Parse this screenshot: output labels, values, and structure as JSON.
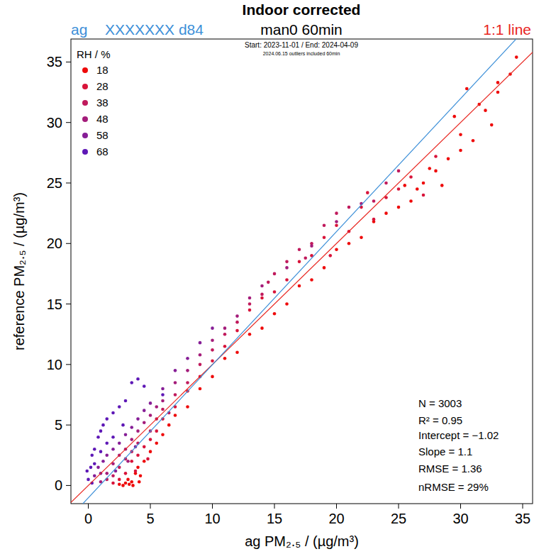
{
  "chart_data": {
    "type": "scatter",
    "title": "Indoor corrected",
    "header": {
      "left": "ag",
      "left2": "XXXXXXX d84",
      "center": "man0 60min",
      "right": "1:1 line",
      "left_color": "#3c8fd8",
      "right_color": "#e8251f"
    },
    "subtitle": "Start: 2023-11-01 / End: 2024-04-09",
    "note": "2024.06.15 outliers included 60min",
    "x_label": "ag PM₂.₅ / (µg/m³)",
    "y_label": "reference PM₂.₅ / (µg/m³)",
    "legend_title": "RH / %",
    "legend": "top-left",
    "xlim": [
      -1.4,
      35.8
    ],
    "ylim": [
      -1.5,
      36.9
    ],
    "xticks": [
      0,
      5,
      10,
      15,
      20,
      25,
      30,
      35
    ],
    "yticks": [
      0,
      5,
      10,
      15,
      20,
      25,
      30,
      35
    ],
    "grid": false,
    "fit": {
      "slope": 1.1,
      "intercept": -1.02,
      "color": "#3c8fd8"
    },
    "identity_line": {
      "color": "#e8251f"
    },
    "annotations": [
      "N = 3003",
      "R² = 0.95",
      "Intercept = −1.02",
      "Slope = 1.1",
      "RMSE = 1.36",
      "nRMSE = 29%"
    ],
    "series": [
      {
        "name": "18",
        "color": "#ee0a0a",
        "x": [
          3,
          3.2,
          3.5,
          3.8,
          4,
          4.2,
          4.5,
          5,
          5.5,
          6,
          6.5,
          7,
          8,
          9,
          10,
          11,
          12,
          13,
          14,
          15,
          16,
          17,
          18,
          19,
          20,
          21,
          22,
          23,
          24,
          25,
          26,
          27,
          28,
          29,
          30,
          31,
          32,
          33,
          34,
          34.5,
          29.5,
          30.5,
          28.5,
          27.5,
          26.5,
          25.5,
          31.5,
          32.5,
          30,
          33,
          2.8,
          3.3,
          3.6,
          4.1,
          2.5
        ],
        "values": [
          0.2,
          0.5,
          0.3,
          1,
          1.5,
          0.8,
          2,
          2.8,
          3.5,
          4.2,
          5,
          5.8,
          6.5,
          8,
          9,
          10.5,
          11,
          12.5,
          13,
          14.2,
          15,
          16.5,
          17,
          18,
          19.5,
          20,
          20.5,
          21.8,
          22.5,
          23,
          23.5,
          25,
          26,
          27,
          29,
          28.5,
          31,
          32.5,
          34,
          35.4,
          30.5,
          32.8,
          24.8,
          26.2,
          24.5,
          24.8,
          31.5,
          29.8,
          27.7,
          33.3,
          0,
          0.1,
          0,
          0.3,
          0.1
        ]
      },
      {
        "name": "28",
        "color": "#d8143a",
        "x": [
          2.5,
          3,
          3.5,
          4,
          4.5,
          5,
          5.5,
          6,
          7,
          8,
          9,
          10,
          11,
          12,
          13,
          14,
          15,
          16,
          17,
          18,
          19,
          20,
          21,
          22,
          23,
          24,
          25,
          26,
          27,
          28,
          22.5,
          19.5,
          2,
          3.8,
          4.8
        ],
        "values": [
          0.5,
          1,
          2,
          2.5,
          3.2,
          3.8,
          4.5,
          5.5,
          6.5,
          7.8,
          9,
          10.3,
          11.5,
          12.8,
          14.5,
          15.5,
          16,
          17,
          18.5,
          19,
          20.5,
          21.5,
          21,
          23,
          22,
          23.8,
          24.5,
          25.5,
          24,
          27.2,
          24.2,
          19,
          0.2,
          1.2,
          2.2
        ]
      },
      {
        "name": "38",
        "color": "#c01a5c",
        "x": [
          2,
          2.5,
          3,
          3.5,
          4,
          5,
          5.5,
          6,
          6.5,
          7,
          8,
          9,
          10,
          11,
          12,
          13,
          14,
          15,
          16,
          17,
          18,
          19,
          20,
          21,
          23,
          24,
          25,
          17.5,
          14.5,
          1.5
        ],
        "values": [
          0.8,
          1.5,
          2.2,
          2.8,
          3.5,
          4.5,
          5.5,
          6.3,
          6,
          7.5,
          8.5,
          10,
          11.2,
          12.5,
          13.5,
          15,
          15.8,
          17.5,
          18.5,
          19.5,
          20,
          21.5,
          22.5,
          23,
          23.5,
          25,
          26,
          18.8,
          16.8,
          0.5
        ]
      },
      {
        "name": "48",
        "color": "#a41c7a",
        "x": [
          1.5,
          2,
          2.5,
          3,
          3.5,
          4,
          4.5,
          5,
          5.5,
          6,
          7,
          8,
          9,
          10,
          11,
          12,
          13,
          14,
          16,
          18,
          20,
          22,
          1,
          3.2
        ],
        "values": [
          1,
          1.8,
          2.5,
          3,
          3.8,
          4.5,
          5.2,
          5.8,
          6.5,
          7,
          8.5,
          9.5,
          10.8,
          12,
          13,
          14,
          15.5,
          16.5,
          18,
          19.8,
          21.8,
          23.3,
          0.3,
          2
        ]
      },
      {
        "name": "58",
        "color": "#861e96",
        "x": [
          1,
          1.2,
          1.5,
          2,
          2.5,
          3,
          3.5,
          4,
          4.5,
          5,
          6,
          7,
          8,
          9,
          10,
          0.5,
          0.8,
          2.2,
          3.8
        ],
        "values": [
          1,
          2,
          2.5,
          3,
          3.5,
          4.2,
          4.8,
          5.5,
          6.2,
          6.8,
          8,
          9.5,
          10.5,
          11.8,
          13,
          0.8,
          1.5,
          1.2,
          3.2
        ]
      },
      {
        "name": "68",
        "color": "#5e18b6",
        "x": [
          0,
          0.2,
          0.3,
          0.5,
          0.8,
          1,
          1.2,
          1.5,
          2,
          2.5,
          3,
          3.5,
          4,
          4.5,
          1.5,
          1,
          0.5,
          2,
          0.3,
          -0.1,
          2.8,
          6
        ],
        "values": [
          0.5,
          1.5,
          2.5,
          3,
          4,
          4.5,
          5,
          5.5,
          6,
          6.5,
          7,
          8.5,
          8.8,
          8.2,
          3.5,
          2.8,
          1.8,
          4,
          0.2,
          1.2,
          5,
          7.5
        ]
      }
    ]
  }
}
